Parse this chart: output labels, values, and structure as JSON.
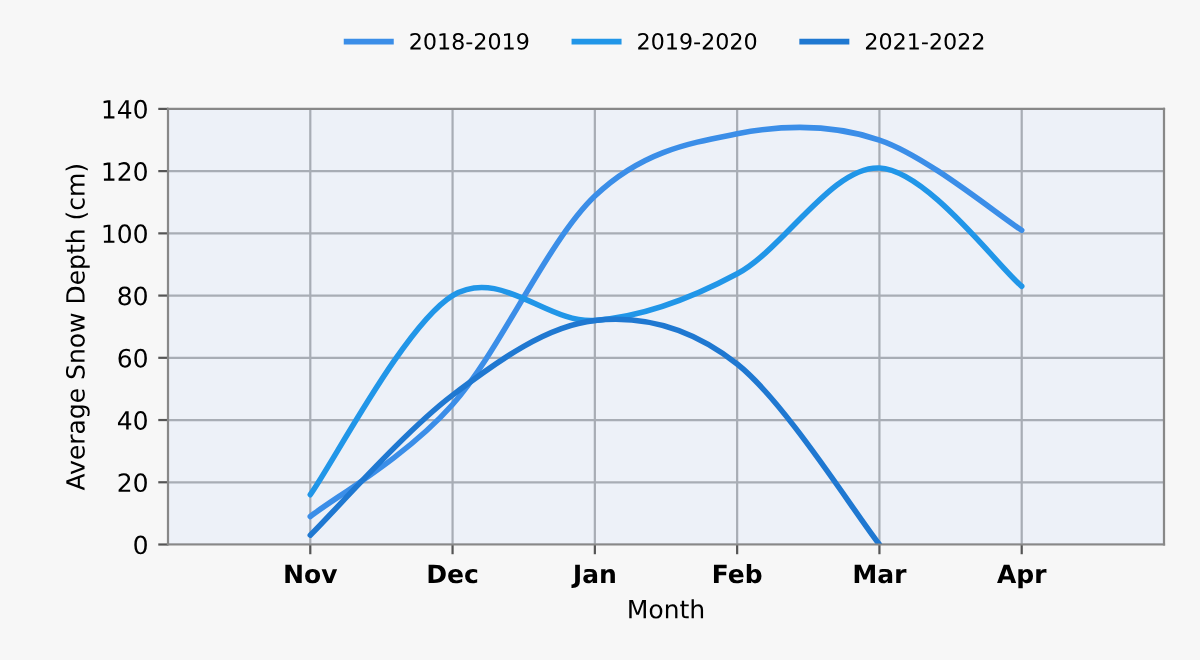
{
  "chart_data": {
    "type": "line",
    "xlabel": "Month",
    "ylabel": "Average Snow Depth (cm)",
    "categories": [
      "Nov",
      "Dec",
      "Jan",
      "Feb",
      "Mar",
      "Apr"
    ],
    "series": [
      {
        "name": "2018-2019",
        "color": "#3b8ee8",
        "values": [
          9,
          45,
          112,
          132,
          130,
          101
        ]
      },
      {
        "name": "2019-2020",
        "color": "#2196e8",
        "values": [
          16,
          80,
          72,
          87,
          121,
          83
        ]
      },
      {
        "name": "2021-2022",
        "color": "#1f78d1",
        "values": [
          3,
          48,
          72,
          58,
          0,
          null
        ]
      }
    ],
    "ylim": [
      0,
      140
    ],
    "yticks": [
      0,
      20,
      40,
      60,
      80,
      100,
      120,
      140
    ],
    "grid": true,
    "legend": "top",
    "marker": "none",
    "line_style": "solid"
  }
}
